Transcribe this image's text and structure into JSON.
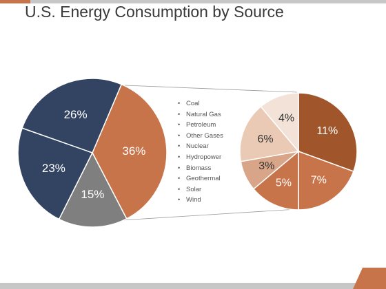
{
  "page": {
    "title": "U.S. Energy Consumption by Source",
    "colors": {
      "accent": "#c8744a",
      "bar": "#c7c7c7",
      "title_text": "#3a3a3a"
    }
  },
  "chart_data": [
    {
      "type": "pie",
      "name": "main",
      "slices": [
        {
          "label": "36%",
          "value": 36,
          "color": "#c8744a"
        },
        {
          "label": "15%",
          "value": 15,
          "color": "#7f7f7f"
        },
        {
          "label": "23%",
          "value": 23,
          "color": "#334463"
        },
        {
          "label": "26%",
          "value": 26,
          "color": "#334463"
        }
      ]
    },
    {
      "type": "pie",
      "name": "breakdown",
      "slices": [
        {
          "label": "11%",
          "value": 11,
          "color": "#a0552a"
        },
        {
          "label": "7%",
          "value": 7,
          "color": "#c8744a"
        },
        {
          "label": "5%",
          "value": 5,
          "color": "#c8744a"
        },
        {
          "label": "3%",
          "value": 3,
          "color": "#d9a588"
        },
        {
          "label": "6%",
          "value": 6,
          "color": "#eac9b5"
        },
        {
          "label": "4%",
          "value": 4,
          "color": "#f2e2d8"
        }
      ]
    }
  ],
  "legend": {
    "items": [
      "Coal",
      "Natural Gas",
      "Petroleum",
      "Other Gases",
      "Nuclear",
      "Hydropower",
      "Biomass",
      "Geothermal",
      "Solar",
      "Wind"
    ]
  }
}
